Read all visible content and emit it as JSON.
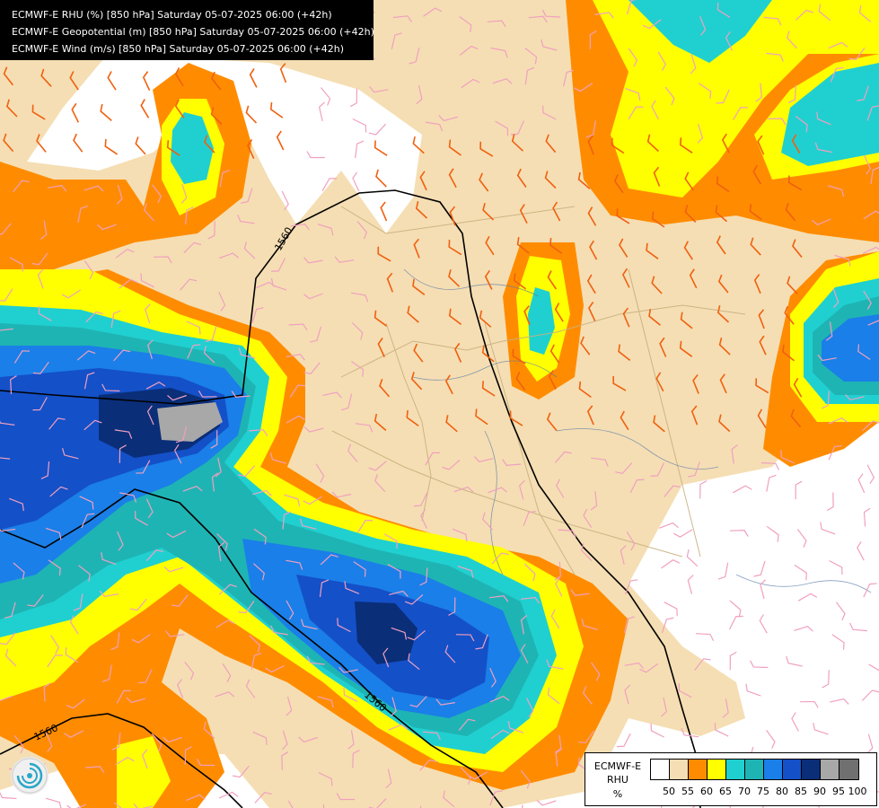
{
  "title_lines": [
    "ECMWF-E RHU (%) [850 hPa] Saturday 05-07-2025 06:00 (+42h)",
    "ECMWF-E Geopotential (m) [850 hPa] Saturday 05-07-2025 06:00 (+42h)",
    "ECMWF-E Wind (m/s) [850 hPa] Saturday 05-07-2025 06:00 (+42h)"
  ],
  "legend": {
    "label_lines": [
      "ECMWF-E",
      "RHU",
      "%"
    ],
    "ticks": [
      "50",
      "55",
      "60",
      "65",
      "70",
      "75",
      "80",
      "85",
      "90",
      "95",
      "100"
    ],
    "colors": [
      "#ffffff",
      "#f5deb3",
      "#ff8c00",
      "#ffff00",
      "#20d0d0",
      "#1fb4b4",
      "#1a7fe8",
      "#1450c8",
      "#0a2e78",
      "#a8a8a8",
      "#707070"
    ]
  },
  "geopotential_labels": [
    "1560",
    "1560",
    "1560"
  ],
  "logo_icon": "ecmwf-swirl-icon"
}
